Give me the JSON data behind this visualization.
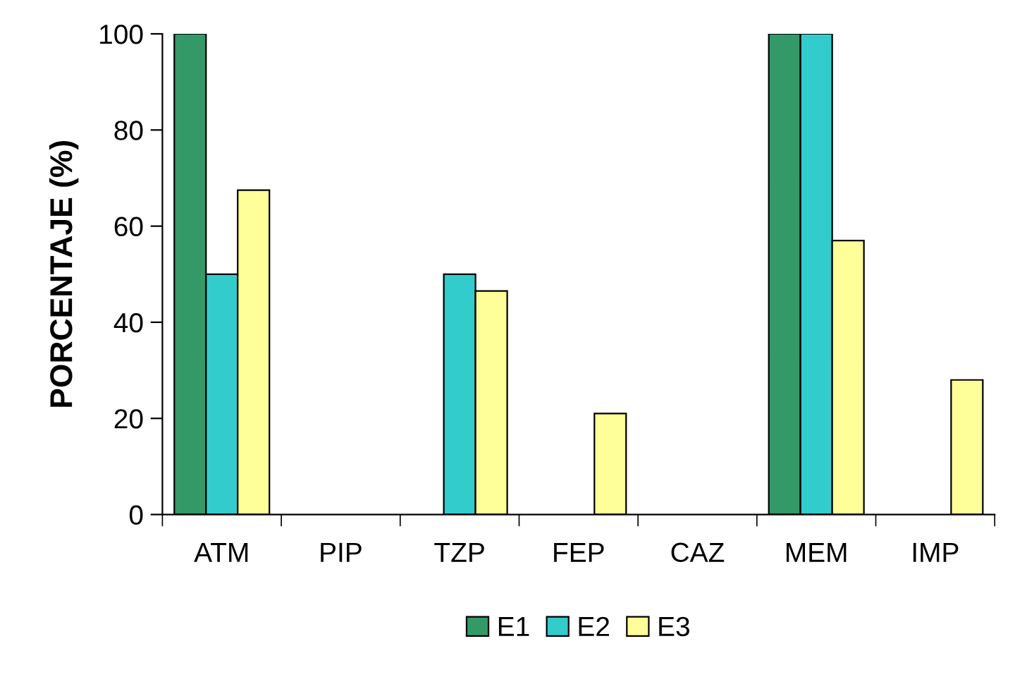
{
  "chart_data": {
    "type": "bar",
    "ylabel": "PORCENTAJE (%)",
    "categories": [
      "ATM",
      "PIP",
      "TZP",
      "FEP",
      "CAZ",
      "MEM",
      "IMP"
    ],
    "series": [
      {
        "name": "E1",
        "color": "#339966",
        "values": [
          100,
          0,
          0,
          0,
          0,
          100,
          0
        ]
      },
      {
        "name": "E2",
        "color": "#33cccc",
        "values": [
          50,
          0,
          50,
          0,
          0,
          100,
          0
        ]
      },
      {
        "name": "E3",
        "color": "#ffff99",
        "values": [
          67.5,
          0,
          46.5,
          21,
          0,
          57,
          28
        ]
      }
    ],
    "ylim": [
      0,
      100
    ],
    "yticks": [
      0,
      20,
      40,
      60,
      80,
      100
    ],
    "grid": false,
    "legend": "bottom"
  }
}
